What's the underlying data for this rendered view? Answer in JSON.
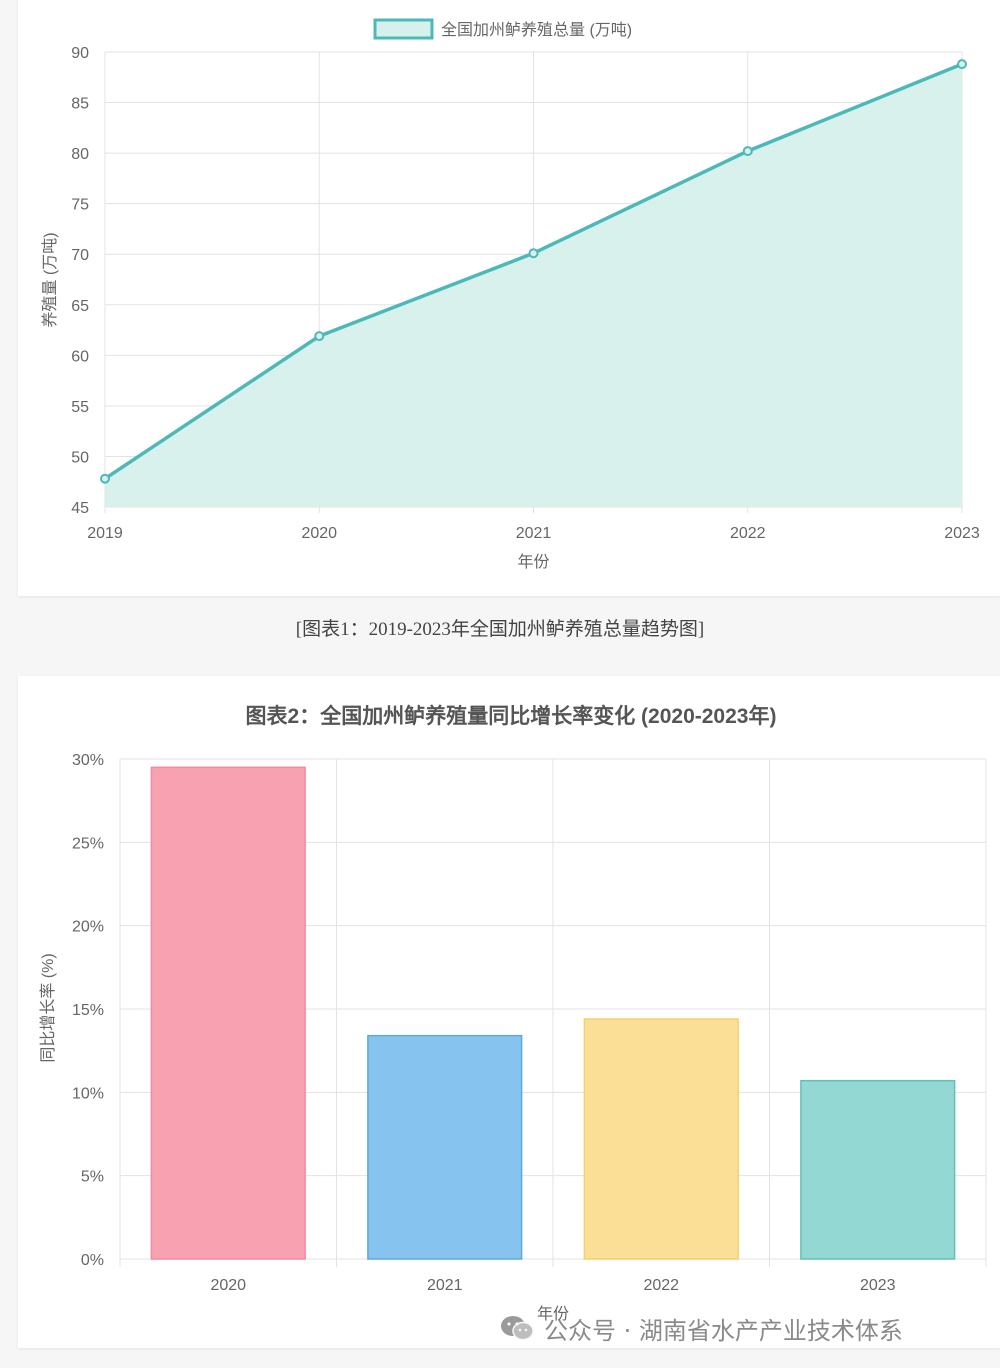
{
  "caption": "[图表1：2019-2023年全国加州鲈养殖总量趋势图]",
  "watermark": "公众号 · 湖南省水产产业技术体系",
  "colors": {
    "line": "#4db8b8",
    "area": "#d6f0ec",
    "grid": "#e3e3e3",
    "axis_text": "#666666",
    "bars": [
      "#f7a1b1",
      "#86c3ef",
      "#fbdf96",
      "#93d8d2"
    ],
    "bar_borders": [
      "#f38aa0",
      "#5aa9e0",
      "#f5cf6e",
      "#5fc1b9"
    ]
  },
  "chart_data": [
    {
      "type": "area",
      "title": "",
      "legend": "全国加州鲈养殖总量 (万吨)",
      "legend_position": "top-center",
      "x": [
        "2019",
        "2020",
        "2021",
        "2022",
        "2023"
      ],
      "series": [
        {
          "name": "全国加州鲈养殖总量 (万吨)",
          "values": [
            47.8,
            61.9,
            70.1,
            80.2,
            88.8
          ]
        }
      ],
      "xlabel": "年份",
      "ylabel": "养殖量 (万吨)",
      "ylim": [
        45,
        90
      ],
      "yticks": [
        "45",
        "50",
        "55",
        "60",
        "65",
        "70",
        "75",
        "80",
        "85",
        "90"
      ],
      "grid": true
    },
    {
      "type": "bar",
      "title": "图表2：全国加州鲈养殖量同比增长率变化 (2020-2023年)",
      "categories": [
        "2020",
        "2021",
        "2022",
        "2023"
      ],
      "values": [
        29.5,
        13.4,
        14.4,
        10.7
      ],
      "xlabel": "年份",
      "ylabel": "同比增长率 (%)",
      "ylim": [
        0,
        30
      ],
      "yticks": [
        "0%",
        "5%",
        "10%",
        "15%",
        "20%",
        "25%",
        "30%"
      ],
      "grid": true
    }
  ]
}
